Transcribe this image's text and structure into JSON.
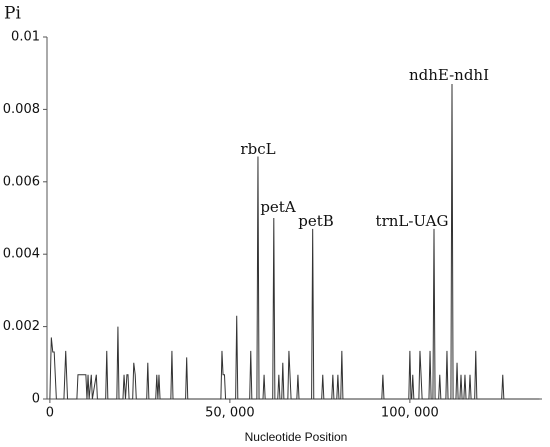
{
  "chart_data": {
    "type": "line",
    "y_label": "Pi",
    "x_label": "Nucleotide Position",
    "annotations": [
      "rbcL",
      "petA",
      "petB",
      "trnL-UAG",
      "ndhE-ndhI"
    ],
    "color": "#333333",
    "xlim": [
      -800,
      136700
    ],
    "ylim": [
      0,
      0.01
    ],
    "xticks": [
      0,
      {
        "value": 50000,
        "label": "50, 000"
      },
      {
        "value": 100000,
        "label": "100, 000"
      }
    ],
    "yticks": [
      0,
      0.002,
      0.004,
      0.006,
      0.008,
      0.01
    ],
    "x": [
      0,
      400,
      800,
      1200,
      1800,
      3900,
      4400,
      4900,
      7500,
      7800,
      10000,
      10300,
      10600,
      10900,
      11500,
      11800,
      12900,
      13200,
      15500,
      15800,
      16100,
      18600,
      18900,
      19200,
      20300,
      20600,
      21000,
      21400,
      21700,
      22000,
      23000,
      23300,
      23700,
      24000,
      26900,
      27200,
      27500,
      29400,
      29700,
      30000,
      30300,
      30600,
      33600,
      33900,
      34200,
      37700,
      38000,
      38300,
      47500,
      47800,
      48100,
      48500,
      48800,
      51600,
      51900,
      52200,
      55500,
      55800,
      56100,
      57500,
      57800,
      58100,
      59200,
      59500,
      59800,
      61900,
      62200,
      62500,
      63300,
      63600,
      63900,
      64400,
      64700,
      65000,
      66100,
      66400,
      66700,
      67000,
      68600,
      68900,
      69200,
      72700,
      73000,
      73300,
      75500,
      75800,
      76100,
      78300,
      78600,
      78900,
      79700,
      80000,
      80300,
      80800,
      81100,
      81400,
      92200,
      92500,
      92800,
      99700,
      100000,
      100300,
      100500,
      100800,
      101100,
      102500,
      102800,
      103100,
      103400,
      105300,
      105600,
      105900,
      106400,
      106700,
      107000,
      108000,
      108300,
      108600,
      110000,
      110300,
      110600,
      111400,
      111700,
      112000,
      112800,
      113100,
      113400,
      113900,
      114200,
      114500,
      115000,
      115300,
      115600,
      116400,
      116700,
      117000,
      118000,
      118300,
      118600,
      125500,
      125800,
      126100,
      136000
    ],
    "values": [
      0,
      0.0017,
      0.0013,
      0.0013,
      0,
      0,
      0.00133,
      0,
      0,
      0.00067,
      0.00067,
      0,
      0.00067,
      0,
      0.00067,
      0,
      0.00067,
      0,
      0,
      0.00133,
      0,
      0,
      0.002,
      0,
      0,
      0.00067,
      0,
      0.00067,
      0.00067,
      0,
      0,
      0.001,
      0.00067,
      0,
      0,
      0.001,
      0,
      0,
      0.00067,
      0,
      0.00067,
      0,
      0,
      0.00133,
      0,
      0,
      0.00115,
      0,
      0,
      0.00133,
      0.00067,
      0.00067,
      0,
      0,
      0.0023,
      0,
      0,
      0.00133,
      0,
      0,
      0.0067,
      0,
      0,
      0.00067,
      0,
      0,
      0.005,
      0,
      0,
      0.00067,
      0,
      0,
      0.001,
      0,
      0,
      0.00133,
      0.00067,
      0,
      0,
      0.00067,
      0,
      0,
      0.0047,
      0,
      0,
      0.00067,
      0,
      0,
      0.00067,
      0,
      0,
      0.00067,
      0,
      0,
      0.00133,
      0,
      0,
      0.00067,
      0,
      0,
      0.00133,
      0,
      0,
      0.00067,
      0,
      0,
      0.00133,
      0.00067,
      0,
      0,
      0.00133,
      0,
      0,
      0.0047,
      0,
      0,
      0.00067,
      0,
      0,
      0.00133,
      0,
      0,
      0.0087,
      0,
      0,
      0.001,
      0,
      0,
      0.00067,
      0,
      0,
      0.00067,
      0,
      0,
      0.00067,
      0,
      0,
      0.00133,
      0,
      0,
      0.00067,
      0,
      0
    ]
  }
}
